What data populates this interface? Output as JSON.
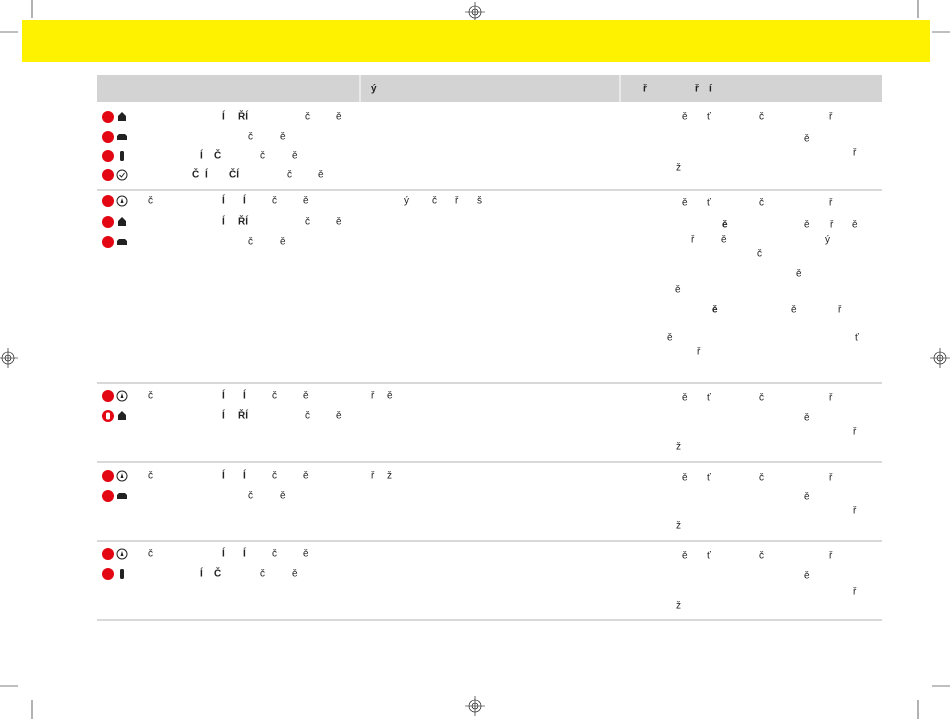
{
  "table": {
    "header": [
      "ý",
      [
        "ř",
        "ř",
        "í"
      ]
    ],
    "rows": [
      {
        "lines": [
          [
            "Í",
            "ŘÍ",
            "č",
            "ě"
          ],
          [
            "č",
            "ě"
          ],
          [
            "Í",
            "Č",
            "č",
            "ě"
          ],
          [
            "Č",
            "Í",
            "ČÍ",
            "č",
            "ě"
          ]
        ],
        "status": [],
        "notes": [
          [
            "ě",
            "ť",
            "č",
            "ř"
          ],
          [
            "ě"
          ],
          [
            "ř"
          ],
          [
            "ž"
          ]
        ]
      },
      {
        "lines": [
          [
            "č",
            "Í",
            "Í",
            "č",
            "ě"
          ],
          [
            "Í",
            "ŘÍ",
            "č",
            "ě"
          ],
          [
            "č",
            "ě"
          ]
        ],
        "status": [
          [
            "ý",
            "č",
            "ř",
            "š"
          ]
        ],
        "notes": [
          [
            "ě",
            "ť",
            "č",
            "ř"
          ],
          [
            "ě",
            "ě",
            "ř",
            "ě"
          ],
          [
            "ř",
            "ě",
            "ý"
          ],
          [
            "č"
          ],
          [
            "ě"
          ],
          [
            "ě"
          ],
          [
            "ě",
            "ě",
            "ř"
          ],
          [
            "ě",
            "ť"
          ],
          [
            "ř"
          ]
        ]
      },
      {
        "lines": [
          [
            "č",
            "Í",
            "Í",
            "č",
            "ě"
          ],
          [
            "Í",
            "ŘÍ",
            "č",
            "ě"
          ]
        ],
        "status": [
          [
            "ř",
            "ě"
          ]
        ],
        "notes": [
          [
            "ě",
            "ť",
            "č",
            "ř"
          ],
          [
            "ě"
          ],
          [
            "ř"
          ],
          [
            "ž"
          ]
        ]
      },
      {
        "lines": [
          [
            "č",
            "Í",
            "Í",
            "č",
            "ě"
          ],
          [
            "č",
            "ě"
          ]
        ],
        "status": [
          [
            "ř",
            "ž"
          ]
        ],
        "notes": [
          [
            "ě",
            "ť",
            "č",
            "ř"
          ],
          [
            "ě"
          ],
          [
            "ř"
          ],
          [
            "ž"
          ]
        ]
      },
      {
        "lines": [
          [
            "č",
            "Í",
            "Í",
            "č",
            "ě"
          ],
          [
            "Í",
            "Č",
            "č",
            "ě"
          ]
        ],
        "status": [],
        "notes": [
          [
            "ě",
            "ť",
            "č",
            "ř"
          ],
          [
            "ě"
          ],
          [
            "ř"
          ],
          [
            "ž"
          ]
        ]
      }
    ]
  }
}
